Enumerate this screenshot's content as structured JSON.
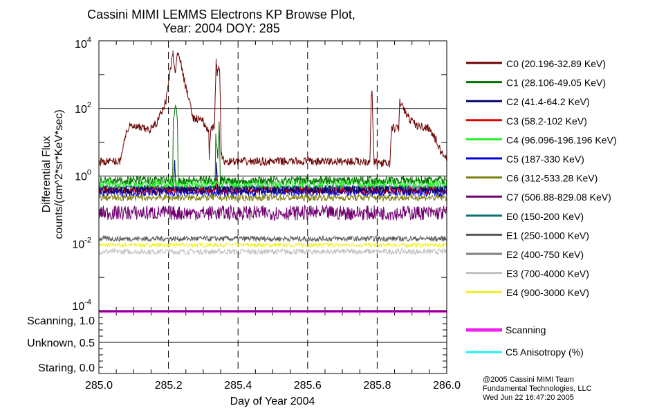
{
  "chart_data": {
    "type": "line",
    "title": "Cassini MIMI LEMMS Electrons KP Browse Plot,",
    "subtitle": "Year: 2004 DOY: 285",
    "xlabel": "Day of Year 2004",
    "ylabel": [
      "Differential Flux",
      "counts/(cm^2*sr*KeV*sec)"
    ],
    "xlim": [
      285.0,
      286.0
    ],
    "ylim": [
      0.0001,
      10000
    ],
    "yscale": "log",
    "grid": "horizontal solid at 10^2 and 10^0; vertical dashed at each x tick",
    "x_ticks": [
      "285.0",
      "285.2",
      "285.4",
      "285.6",
      "285.8",
      "286.0"
    ],
    "y_ticks": [
      {
        "base": "10",
        "exp": "4",
        "value": 10000
      },
      {
        "base": "10",
        "exp": "2",
        "value": 100
      },
      {
        "base": "10",
        "exp": "0",
        "value": 1
      },
      {
        "base": "10",
        "exp": "-2",
        "value": 0.01
      },
      {
        "base": "10",
        "exp": "-4",
        "value": 0.0001
      }
    ],
    "legend_placement": "right",
    "series": [
      {
        "name": "C0 (20.196-32.89 KeV)",
        "color": "#6b0000",
        "points": [
          [
            285.0,
            2.7
          ],
          [
            285.06,
            2.7
          ],
          [
            285.08,
            23
          ],
          [
            285.09,
            30
          ],
          [
            285.146,
            23
          ],
          [
            285.166,
            37
          ],
          [
            285.193,
            174
          ],
          [
            285.213,
            4700
          ],
          [
            285.219,
            980
          ],
          [
            285.226,
            4900
          ],
          [
            285.229,
            4700
          ],
          [
            285.246,
            620
          ],
          [
            285.272,
            50
          ],
          [
            285.299,
            47
          ],
          [
            285.306,
            25
          ],
          [
            285.316,
            23
          ],
          [
            285.317,
            3.8
          ],
          [
            285.322,
            23
          ],
          [
            285.332,
            27
          ],
          [
            285.337,
            2500
          ],
          [
            285.34,
            1000
          ],
          [
            285.347,
            1700
          ],
          [
            285.352,
            4.1
          ],
          [
            285.36,
            2.7
          ],
          [
            285.779,
            2.7
          ],
          [
            285.783,
            280
          ],
          [
            285.785,
            390
          ],
          [
            285.788,
            23
          ],
          [
            285.791,
            2.5
          ],
          [
            285.836,
            2.3
          ],
          [
            285.842,
            27
          ],
          [
            285.862,
            25
          ],
          [
            285.865,
            162
          ],
          [
            285.889,
            54
          ],
          [
            285.915,
            30
          ],
          [
            285.948,
            27
          ],
          [
            285.968,
            12
          ],
          [
            285.985,
            4.8
          ],
          [
            286.0,
            3.5
          ]
        ]
      },
      {
        "name": "C1 (28.106-49.05 KeV)",
        "color": "#007000",
        "points": [
          [
            285.0,
            0.75
          ],
          [
            285.212,
            0.75
          ],
          [
            285.214,
            40
          ],
          [
            285.22,
            150
          ],
          [
            285.226,
            40
          ],
          [
            285.228,
            0.75
          ],
          [
            285.334,
            0.75
          ],
          [
            285.336,
            15
          ],
          [
            285.342,
            4
          ],
          [
            285.346,
            40
          ],
          [
            285.349,
            0.75
          ],
          [
            286.0,
            0.75
          ]
        ]
      },
      {
        "name": "C2 (41.4-64.2 KeV)",
        "color": "#000070",
        "points": [
          [
            285.0,
            0.39
          ],
          [
            285.214,
            0.39
          ],
          [
            285.218,
            3
          ],
          [
            285.222,
            0.39
          ],
          [
            285.335,
            0.39
          ],
          [
            285.338,
            2.5
          ],
          [
            285.342,
            0.39
          ],
          [
            286.0,
            0.39
          ]
        ]
      },
      {
        "name": "C3 (58.2-102 KeV)",
        "color": "#e00000",
        "points": [
          [
            285.0,
            0.38
          ],
          [
            285.337,
            0.38
          ],
          [
            285.339,
            0.9
          ],
          [
            285.341,
            0.38
          ],
          [
            286.0,
            0.38
          ]
        ]
      },
      {
        "name": "C4 (96.096-196.196 KeV)",
        "color": "#20f020",
        "points": [
          [
            285.0,
            0.6
          ],
          [
            286.0,
            0.6
          ]
        ]
      },
      {
        "name": "C5 (187-330 KeV)",
        "color": "#0000e0",
        "points": [
          [
            285.0,
            0.33
          ],
          [
            286.0,
            0.33
          ]
        ]
      },
      {
        "name": "C6 (312-533.28 KeV)",
        "color": "#808010",
        "points": [
          [
            285.0,
            0.23
          ],
          [
            286.0,
            0.23
          ]
        ]
      },
      {
        "name": "C7 (506.88-829.08 KeV)",
        "color": "#700070",
        "points": [
          [
            285.0,
            0.081
          ],
          [
            286.0,
            0.081
          ]
        ]
      },
      {
        "name": "E0 (150-200 KeV)",
        "color": "#107070",
        "points": [
          [
            285.0,
            0.47
          ],
          [
            286.0,
            0.47
          ]
        ]
      },
      {
        "name": "E1 (250-1000 KeV)",
        "color": "#585858",
        "points": [
          [
            285.0,
            0.014
          ],
          [
            286.0,
            0.014
          ]
        ]
      },
      {
        "name": "E2 (400-750 KeV)",
        "color": "#808080",
        "points": [
          [
            285.0,
            0.44
          ],
          [
            286.0,
            0.44
          ]
        ]
      },
      {
        "name": "E3 (700-4000 KeV)",
        "color": "#c0c0c0",
        "points": [
          [
            285.0,
            0.0058
          ],
          [
            286.0,
            0.0058
          ]
        ]
      },
      {
        "name": "E4 (900-3000 KeV)",
        "color": "#f0f020",
        "points": [
          [
            285.0,
            0.0091
          ],
          [
            286.0,
            0.0091
          ]
        ]
      }
    ],
    "lower_panel": {
      "ylim": [
        0.0,
        1.0
      ],
      "y_ticks": [
        "Scanning, 1.0",
        "Unknown, 0.5",
        "Staring, 0.0"
      ],
      "series": [
        {
          "name": "Scanning",
          "color": "#f020f0",
          "points": [
            [
              285.0,
              1.0
            ],
            [
              286.0,
              1.0
            ]
          ]
        },
        {
          "name": "C5 Anisotropy (%)",
          "color": "#20f0f0",
          "points": []
        }
      ]
    }
  },
  "footer": [
    "@2005 Cassini MIMI Team",
    "Fundamental Technologies, LLC",
    "Wed Jun 22 16:47:20 2005"
  ]
}
